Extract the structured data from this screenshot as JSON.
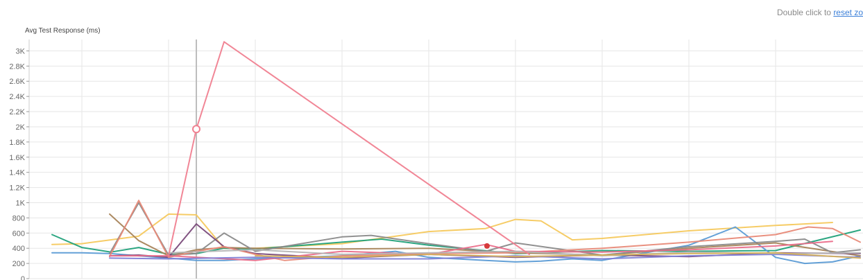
{
  "top_note": {
    "prefix": "Double click to ",
    "link": "reset zo"
  },
  "chart_data": {
    "type": "line",
    "ylabel": "Avg Test Response (ms)",
    "xlabel": "",
    "title": "",
    "ylim": [
      0,
      3150
    ],
    "xlim": [
      0,
      1240
    ],
    "yticks": [
      0,
      200,
      400,
      600,
      800,
      1000,
      1200,
      1400,
      1600,
      1800,
      2000,
      2200,
      2400,
      2600,
      2800,
      3000
    ],
    "ytick_labels": [
      "0",
      "200",
      "400",
      "600",
      "800",
      "1K",
      "1.2K",
      "1.4K",
      "1.6K",
      "1.8K",
      "2K",
      "2.2K",
      "2.4K",
      "2.6K",
      "2.8K",
      "3K"
    ],
    "xgrid": [
      118,
      243,
      368,
      493,
      618,
      743,
      868,
      993,
      1118
    ],
    "crosshair_x": 283,
    "grid": true,
    "series": [
      {
        "color": "#f08090",
        "x": [
          243,
          283,
          323,
          763
        ],
        "values": [
          300,
          1970,
          3120,
          320
        ],
        "marker_x": 283,
        "marker_value": 1970,
        "marker_style": "hollow"
      },
      {
        "color": "#f6c95e",
        "x": [
          75,
          118,
          200,
          243,
          283,
          323,
          368,
          493,
          618,
          700,
          743,
          780,
          825,
          868,
          993,
          1118,
          1200
        ],
        "values": [
          450,
          460,
          560,
          850,
          840,
          400,
          400,
          460,
          620,
          660,
          780,
          760,
          510,
          530,
          630,
          700,
          740
        ]
      },
      {
        "color": "#21a17a",
        "x": [
          75,
          118,
          160,
          200,
          243,
          283,
          323,
          368,
          493,
          550,
          618,
          743,
          868,
          993,
          1118,
          1240
        ],
        "values": [
          580,
          410,
          350,
          410,
          320,
          330,
          400,
          390,
          480,
          520,
          440,
          330,
          370,
          360,
          370,
          640
        ]
      },
      {
        "color": "#5b9bd5",
        "x": [
          75,
          118,
          160,
          200,
          243,
          283,
          323,
          368,
          493,
          570,
          618,
          700,
          743,
          780,
          825,
          868,
          993,
          1060,
          1118,
          1160,
          1200,
          1240
        ],
        "values": [
          340,
          340,
          330,
          300,
          270,
          240,
          240,
          260,
          300,
          360,
          280,
          240,
          220,
          230,
          260,
          240,
          440,
          680,
          280,
          200,
          220,
          300
        ]
      },
      {
        "color": "#a8845a",
        "x": [
          158,
          200,
          243,
          283,
          323,
          368,
          493,
          618,
          743,
          868,
          993,
          1118,
          1240
        ],
        "values": [
          850,
          500,
          300,
          380,
          410,
          400,
          390,
          400,
          340,
          310,
          400,
          470,
          300
        ]
      },
      {
        "color": "#8a8a8a",
        "x": [
          158,
          200,
          243,
          283,
          323,
          368,
          493,
          535,
          618,
          700,
          743,
          868,
          993,
          1118,
          1160,
          1200,
          1240
        ],
        "values": [
          330,
          1000,
          310,
          330,
          600,
          360,
          550,
          570,
          460,
          360,
          470,
          310,
          420,
          490,
          520,
          340,
          380
        ]
      },
      {
        "color": "#7a4a7a",
        "x": [
          158,
          200,
          243,
          283,
          323,
          368,
          493,
          618,
          743,
          868,
          993,
          1118,
          1240
        ],
        "values": [
          300,
          310,
          280,
          720,
          420,
          330,
          270,
          320,
          280,
          310,
          290,
          340,
          330
        ]
      },
      {
        "color": "#e88a78",
        "x": [
          158,
          200,
          243,
          283,
          323,
          368,
          410,
          493,
          618,
          743,
          868,
          993,
          1118,
          1165,
          1200,
          1240
        ],
        "values": [
          290,
          1030,
          280,
          360,
          420,
          320,
          240,
          300,
          330,
          340,
          400,
          480,
          580,
          680,
          660,
          480
        ]
      },
      {
        "color": "#ea6d8a",
        "x": [
          158,
          243,
          368,
          493,
          618,
          700,
          743,
          868,
          993,
          1118,
          1200
        ],
        "values": [
          300,
          300,
          240,
          360,
          320,
          450,
          360,
          350,
          380,
          430,
          490
        ]
      },
      {
        "color": "#7f7fd5",
        "x": [
          158,
          243,
          368,
          493,
          618,
          743,
          868,
          993,
          1118,
          1240
        ],
        "values": [
          270,
          260,
          280,
          260,
          260,
          300,
          260,
          300,
          320,
          280
        ]
      },
      {
        "color": "#b5b5b5",
        "x": [
          243,
          368,
          493,
          618,
          743,
          868,
          993,
          1118,
          1240
        ],
        "values": [
          340,
          380,
          320,
          340,
          360,
          300,
          350,
          330,
          340
        ]
      },
      {
        "color": "#d7b25a",
        "x": [
          368,
          493,
          618,
          743,
          868,
          993,
          1118,
          1240
        ],
        "values": [
          300,
          280,
          320,
          290,
          310,
          330,
          340,
          270
        ]
      }
    ],
    "highlight_point": {
      "x": 702,
      "value": 430,
      "color": "#d63a3a"
    }
  }
}
